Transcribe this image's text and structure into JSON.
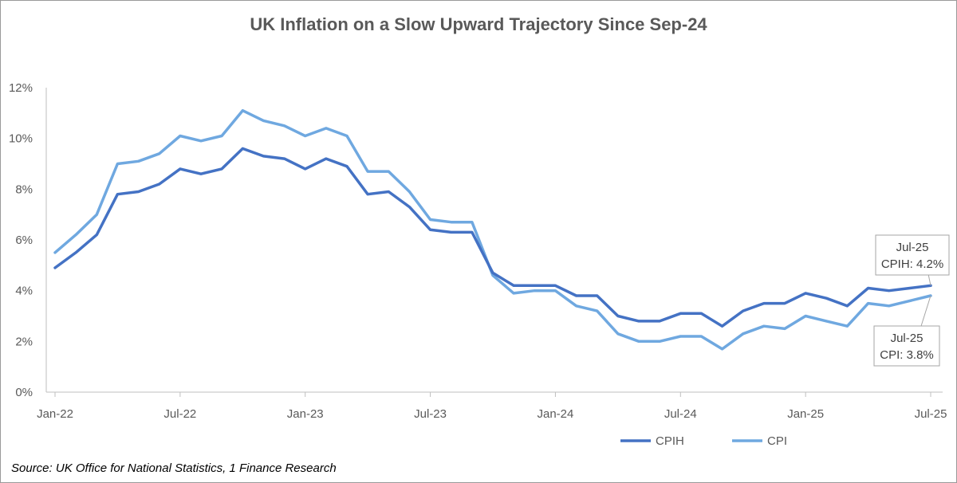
{
  "chart_data": {
    "type": "line",
    "title": "UK Inflation on a Slow Upward Trajectory Since Sep-24",
    "ylim": [
      0,
      12
    ],
    "y_ticks": [
      "0%",
      "2%",
      "4%",
      "6%",
      "8%",
      "10%",
      "12%"
    ],
    "x_tick_labels": [
      "Jan-22",
      "Jul-22",
      "Jan-23",
      "Jul-23",
      "Jan-24",
      "Jul-24",
      "Jan-25",
      "Jul-25"
    ],
    "x": [
      "Jan-22",
      "Feb-22",
      "Mar-22",
      "Apr-22",
      "May-22",
      "Jun-22",
      "Jul-22",
      "Aug-22",
      "Sep-22",
      "Oct-22",
      "Nov-22",
      "Dec-22",
      "Jan-23",
      "Feb-23",
      "Mar-23",
      "Apr-23",
      "May-23",
      "Jun-23",
      "Jul-23",
      "Aug-23",
      "Sep-23",
      "Oct-23",
      "Nov-23",
      "Dec-23",
      "Jan-24",
      "Feb-24",
      "Mar-24",
      "Apr-24",
      "May-24",
      "Jun-24",
      "Jul-24",
      "Aug-24",
      "Sep-24",
      "Oct-24",
      "Nov-24",
      "Dec-24",
      "Jan-25",
      "Feb-25",
      "Mar-25",
      "Apr-25",
      "May-25",
      "Jun-25",
      "Jul-25"
    ],
    "grid": false,
    "legend_position": "bottom-right",
    "series": [
      {
        "name": "CPIH",
        "color": "#4472c4",
        "values": [
          4.9,
          5.5,
          6.2,
          7.8,
          7.9,
          8.2,
          8.8,
          8.6,
          8.8,
          9.6,
          9.3,
          9.2,
          8.8,
          9.2,
          8.9,
          7.8,
          7.9,
          7.3,
          6.4,
          6.3,
          6.3,
          4.7,
          4.2,
          4.2,
          4.2,
          3.8,
          3.8,
          3.0,
          2.8,
          2.8,
          3.1,
          3.1,
          2.6,
          3.2,
          3.5,
          3.5,
          3.9,
          3.7,
          3.4,
          4.1,
          4.0,
          4.1,
          4.2
        ]
      },
      {
        "name": "CPI",
        "color": "#6fa8e0",
        "values": [
          5.5,
          6.2,
          7.0,
          9.0,
          9.1,
          9.4,
          10.1,
          9.9,
          10.1,
          11.1,
          10.7,
          10.5,
          10.1,
          10.4,
          10.1,
          8.7,
          8.7,
          7.9,
          6.8,
          6.7,
          6.7,
          4.6,
          3.9,
          4.0,
          4.0,
          3.4,
          3.2,
          2.3,
          2.0,
          2.0,
          2.2,
          2.2,
          1.7,
          2.3,
          2.6,
          2.5,
          3.0,
          2.8,
          2.6,
          3.5,
          3.4,
          3.6,
          3.8
        ]
      }
    ],
    "annotations": [
      {
        "series": "CPIH",
        "x": "Jul-25",
        "line1": "Jul-25",
        "line2": "CPIH: 4.2%"
      },
      {
        "series": "CPI",
        "x": "Jul-25",
        "line1": "Jul-25",
        "line2": "CPI: 3.8%"
      }
    ]
  },
  "source": "Source: UK Office for National Statistics, 1 Finance Research"
}
